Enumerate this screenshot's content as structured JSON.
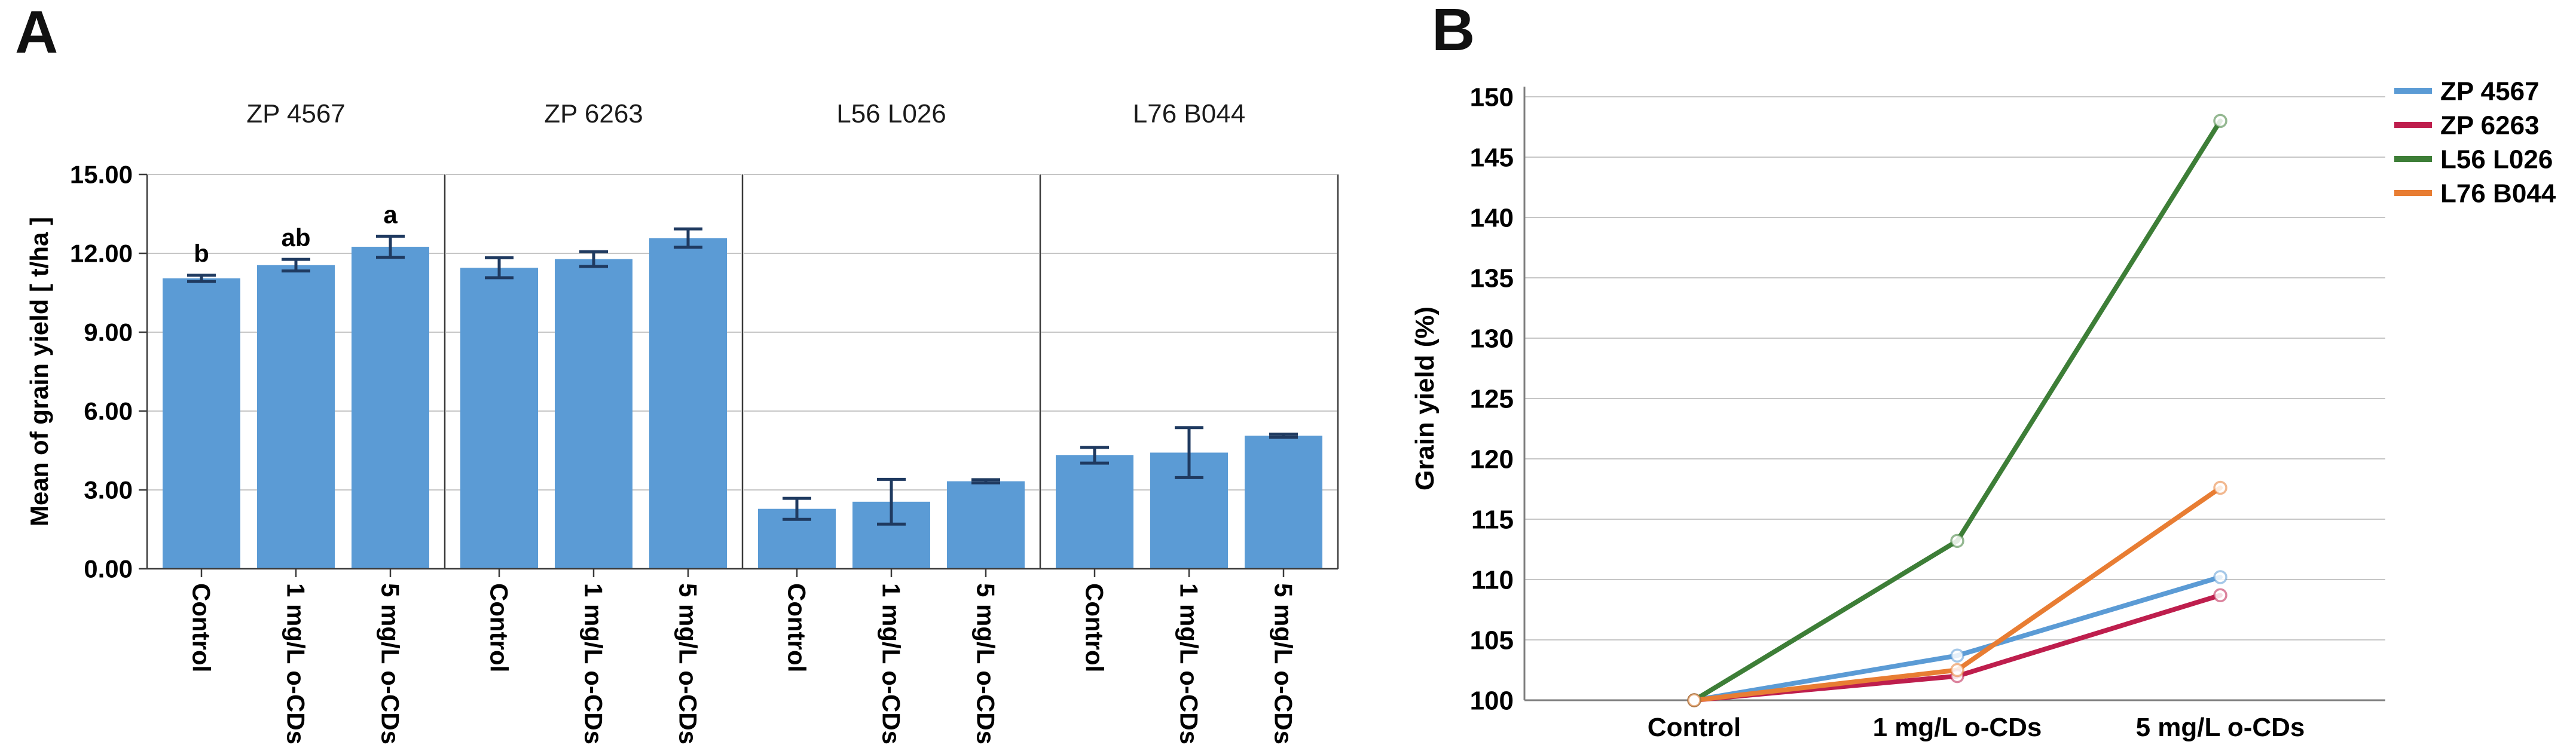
{
  "figure": {
    "panel_a_label": "A",
    "panel_b_label": "B"
  },
  "colors": {
    "bar_fill": "#5B9BD5",
    "error_bar": "#1F3A60",
    "gridline": "#C6C6C6",
    "axis_a": "#3A3A3A",
    "axis_b": "#7D7D7D",
    "text": "#000000",
    "title_text": "#1A1A1A"
  },
  "chart_data": [
    {
      "type": "bar",
      "panel": "A",
      "ylabel": "Mean of grain yield [ t/ha ]",
      "ylim": [
        0,
        15
      ],
      "yticks": [
        {
          "value": 0,
          "label": "0.00"
        },
        {
          "value": 3,
          "label": "3.00"
        },
        {
          "value": 6,
          "label": "6.00"
        },
        {
          "value": 9,
          "label": "9.00"
        },
        {
          "value": 12,
          "label": "12.00"
        },
        {
          "value": 15,
          "label": "15.00"
        }
      ],
      "categories": [
        "Control",
        "1 mg/L o-CDs",
        "5 mg/L o-CDs"
      ],
      "bar_color": "#5B9BD5",
      "grid": true,
      "groups": [
        {
          "name": "ZP 4567",
          "values": [
            11.05,
            11.55,
            12.25
          ],
          "errors": [
            0.12,
            0.22,
            0.4
          ],
          "sig_letters": [
            "b",
            "ab",
            "a"
          ]
        },
        {
          "name": "ZP 6263",
          "values": [
            11.45,
            11.78,
            12.58
          ],
          "errors": [
            0.38,
            0.28,
            0.35
          ],
          "sig_letters": [
            "",
            "",
            ""
          ]
        },
        {
          "name": "L56 L026",
          "values": [
            2.28,
            2.55,
            3.33
          ],
          "errors": [
            0.4,
            0.85,
            0.06
          ],
          "sig_letters": [
            "",
            "",
            ""
          ]
        },
        {
          "name": "L76 B044",
          "values": [
            4.32,
            4.42,
            5.06
          ],
          "errors": [
            0.3,
            0.95,
            0.06
          ],
          "sig_letters": [
            "",
            "",
            ""
          ]
        }
      ]
    },
    {
      "type": "line",
      "panel": "B",
      "ylabel": "Grain yield (%)",
      "ylim": [
        100,
        150
      ],
      "yticks": [
        100,
        105,
        110,
        115,
        120,
        125,
        130,
        135,
        140,
        145,
        150
      ],
      "categories": [
        "Control",
        "1 mg/L o-CDs",
        "5 mg/L o-CDs"
      ],
      "grid": true,
      "legend_position": "top-right",
      "series": [
        {
          "name": "ZP 4567",
          "color": "#5B9BD5",
          "values": [
            100,
            103.7,
            110.2
          ]
        },
        {
          "name": "ZP 6263",
          "color": "#BE1E4D",
          "values": [
            100,
            102.0,
            108.7
          ]
        },
        {
          "name": "L56 L026",
          "color": "#3D7E37",
          "values": [
            100,
            113.2,
            148.0
          ]
        },
        {
          "name": "L76 B044",
          "color": "#E87D33",
          "values": [
            100,
            102.5,
            117.6
          ]
        }
      ]
    }
  ]
}
